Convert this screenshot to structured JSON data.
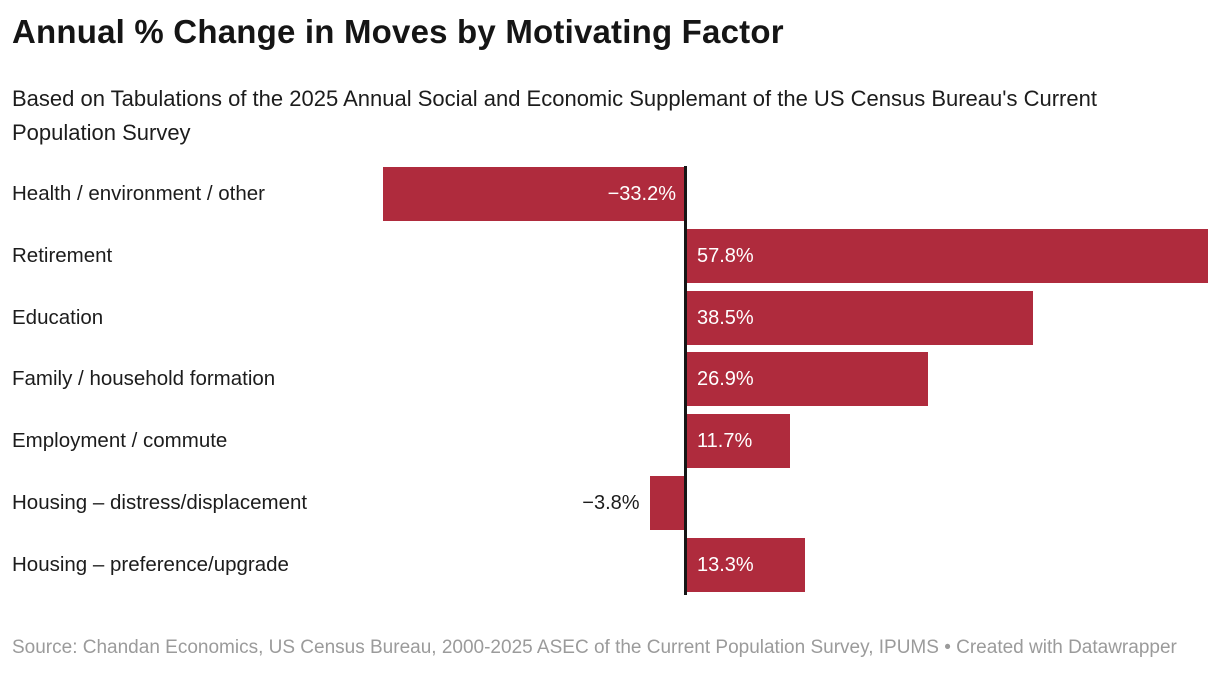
{
  "header": {
    "title": "Annual % Change in Moves by Motivating Factor",
    "subtitle": "Based on Tabulations of the 2025 Annual Social and Economic Supplemant of the US Census Bureau's Current Population Survey"
  },
  "footer": {
    "source_text": "Source: Chandan Economics, US Census Bureau, 2000-2025 ASEC of the Current Population Survey, IPUMS • Created with Datawrapper"
  },
  "colors": {
    "bar": "#af2b3d",
    "axis": "#161616",
    "title_text": "#151515",
    "body_text": "#1c1c1c",
    "value_label_inside": "#ffffff",
    "footer_text": "#9b9b9b"
  },
  "chart_data": {
    "type": "bar",
    "orientation": "horizontal",
    "title": "Annual % Change in Moves by Motivating Factor",
    "xlabel": "",
    "ylabel": "",
    "grid": false,
    "zero_baseline": true,
    "legend": "none",
    "xlim": [
      -40,
      59
    ],
    "categories": [
      "Health / environment / other",
      "Retirement",
      "Education",
      "Family / household formation",
      "Employment / commute",
      "Housing – distress/displacement",
      "Housing – preference/upgrade"
    ],
    "values": [
      -33.2,
      57.8,
      38.5,
      26.9,
      11.7,
      -3.8,
      13.3
    ],
    "value_labels": [
      "−33.2%",
      "57.8%",
      "38.5%",
      "26.9%",
      "11.7%",
      "−3.8%",
      "13.3%"
    ]
  }
}
